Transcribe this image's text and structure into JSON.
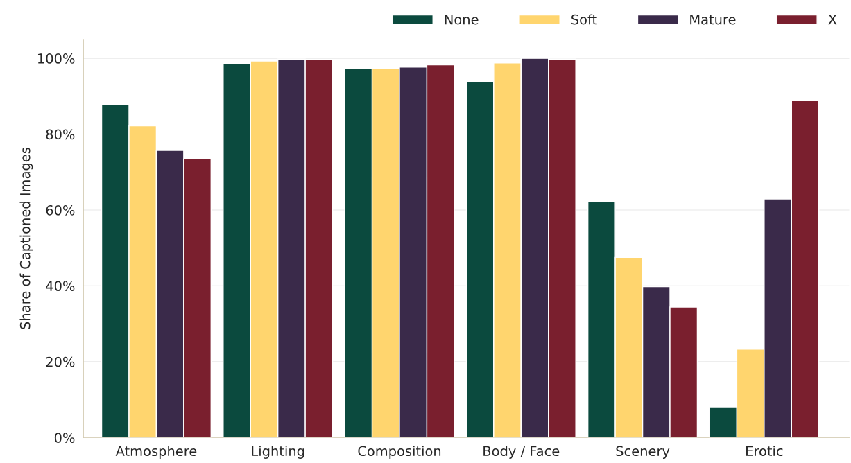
{
  "chart_data": {
    "type": "bar",
    "ylabel": "Share of Captioned Images",
    "categories": [
      "Atmosphere",
      "Lighting",
      "Composition",
      "Body / Face",
      "Scenery",
      "Erotic"
    ],
    "series": [
      {
        "name": "None",
        "color": "#0b4a3e",
        "values": [
          87.9,
          98.5,
          97.3,
          93.8,
          62.2,
          8.1
        ]
      },
      {
        "name": "Soft",
        "color": "#ffd56e",
        "values": [
          82.2,
          99.3,
          97.3,
          98.8,
          47.5,
          23.3
        ]
      },
      {
        "name": "Mature",
        "color": "#3a2a4a",
        "values": [
          75.7,
          99.8,
          97.7,
          100,
          39.8,
          62.9
        ]
      },
      {
        "name": "X",
        "color": "#7a1f2e",
        "values": [
          73.5,
          99.7,
          98.3,
          99.8,
          34.4,
          88.8
        ]
      }
    ],
    "ylim": [
      0,
      105
    ],
    "yticks": [
      {
        "value": 0,
        "label": "0%"
      },
      {
        "value": 20,
        "label": "20%"
      },
      {
        "value": 40,
        "label": "40%"
      },
      {
        "value": 60,
        "label": "60%"
      },
      {
        "value": 80,
        "label": "80%"
      },
      {
        "value": 100,
        "label": "100%"
      }
    ],
    "grid": "y",
    "legend": "top right"
  }
}
